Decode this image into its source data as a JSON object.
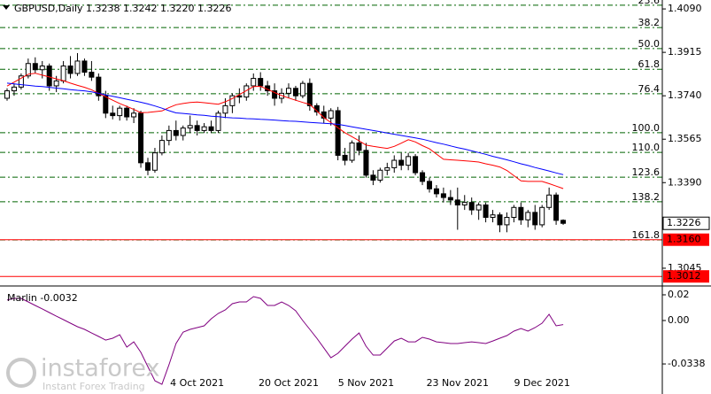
{
  "chart_data": [
    {
      "type": "candlestick",
      "title": "GBPUSD,Daily  1.3238 1.3242 1.3220 1.3226",
      "ylim": [
        1.2977,
        1.4126
      ],
      "yticks": [
        {
          "value": 1.409,
          "label": "1.4090"
        },
        1.3915,
        {
          "value": 1.374,
          "label": "1.3740"
        },
        1.3565,
        {
          "value": 1.339,
          "label": "1.3390"
        },
        1.3045
      ],
      "current_price": 1.3226,
      "levels": [
        {
          "value": 1.316,
          "label": "1.3160",
          "color": "#ff0000"
        },
        {
          "value": 1.3012,
          "label": "1.3012",
          "color": "#ff0000"
        }
      ],
      "fib_color": "#006400",
      "fib_levels": [
        {
          "value": 1.4105,
          "label": "23.6"
        },
        {
          "value": 1.4015,
          "label": "38.2"
        },
        {
          "value": 1.393,
          "label": "50.0"
        },
        {
          "value": 1.3847,
          "label": "61.8"
        },
        {
          "value": 1.3748,
          "label": "76.4"
        },
        {
          "value": 1.3591,
          "label": "100.0"
        },
        {
          "value": 1.3512,
          "label": "110.0"
        },
        {
          "value": 1.3412,
          "label": "123.6"
        },
        {
          "value": 1.3313,
          "label": "138.2"
        },
        {
          "value": 1.3159,
          "label": "161.8"
        }
      ],
      "categories": [
        null,
        null,
        null,
        null,
        null,
        null,
        null,
        null,
        null,
        null,
        null,
        null,
        null,
        null,
        null,
        null,
        null,
        null,
        null,
        null,
        null,
        null,
        null,
        null,
        null,
        null,
        null,
        "4 Oct 2021",
        null,
        null,
        null,
        null,
        null,
        null,
        null,
        null,
        null,
        null,
        null,
        null,
        "20 Oct 2021",
        null,
        null,
        null,
        null,
        null,
        null,
        null,
        null,
        null,
        null,
        "5 Nov 2021",
        null,
        null,
        null,
        null,
        null,
        null,
        null,
        null,
        null,
        null,
        null,
        null,
        "23 Nov 2021",
        null,
        null,
        null,
        null,
        null,
        null,
        null,
        null,
        null,
        null,
        null,
        "9 Dec 2021",
        null,
        null,
        null
      ],
      "ohlc": [
        [
          1.373,
          1.377,
          1.372,
          1.376
        ],
        [
          1.376,
          1.379,
          1.374,
          1.3775
        ],
        [
          1.3775,
          1.383,
          1.3765,
          1.382
        ],
        [
          1.382,
          1.389,
          1.381,
          1.387
        ],
        [
          1.387,
          1.3895,
          1.383,
          1.3845
        ],
        [
          1.3845,
          1.388,
          1.381,
          1.386
        ],
        [
          1.386,
          1.387,
          1.376,
          1.378
        ],
        [
          1.378,
          1.382,
          1.3755,
          1.38
        ],
        [
          1.38,
          1.388,
          1.379,
          1.386
        ],
        [
          1.386,
          1.39,
          1.381,
          1.383
        ],
        [
          1.383,
          1.3912,
          1.382,
          1.388
        ],
        [
          1.388,
          1.389,
          1.382,
          1.3835
        ],
        [
          1.3835,
          1.388,
          1.38,
          1.3815
        ],
        [
          1.3815,
          1.383,
          1.372,
          1.374
        ],
        [
          1.374,
          1.376,
          1.365,
          1.367
        ],
        [
          1.367,
          1.37,
          1.3645,
          1.366
        ],
        [
          1.366,
          1.37,
          1.364,
          1.369
        ],
        [
          1.369,
          1.37,
          1.364,
          1.3655
        ],
        [
          1.3655,
          1.369,
          1.363,
          1.367
        ],
        [
          1.367,
          1.368,
          1.345,
          1.347
        ],
        [
          1.347,
          1.349,
          1.342,
          1.344
        ],
        [
          1.344,
          1.353,
          1.343,
          1.351
        ],
        [
          1.351,
          1.358,
          1.35,
          1.356
        ],
        [
          1.356,
          1.362,
          1.354,
          1.36
        ],
        [
          1.36,
          1.364,
          1.356,
          1.358
        ],
        [
          1.358,
          1.362,
          1.356,
          1.361
        ],
        [
          1.361,
          1.366,
          1.359,
          1.362
        ],
        [
          1.362,
          1.364,
          1.358,
          1.36
        ],
        [
          1.36,
          1.363,
          1.359,
          1.3615
        ],
        [
          1.3615,
          1.364,
          1.359,
          1.36
        ],
        [
          1.36,
          1.368,
          1.359,
          1.367
        ],
        [
          1.367,
          1.373,
          1.365,
          1.37
        ],
        [
          1.37,
          1.375,
          1.367,
          1.374
        ],
        [
          1.374,
          1.377,
          1.371,
          1.3735
        ],
        [
          1.3735,
          1.379,
          1.372,
          1.378
        ],
        [
          1.378,
          1.383,
          1.376,
          1.381
        ],
        [
          1.381,
          1.3835,
          1.376,
          1.378
        ],
        [
          1.378,
          1.38,
          1.374,
          1.376
        ],
        [
          1.376,
          1.379,
          1.37,
          1.373
        ],
        [
          1.373,
          1.377,
          1.371,
          1.375
        ],
        [
          1.375,
          1.379,
          1.373,
          1.377
        ],
        [
          1.377,
          1.378,
          1.372,
          1.374
        ],
        [
          1.374,
          1.38,
          1.373,
          1.379
        ],
        [
          1.379,
          1.381,
          1.368,
          1.37
        ],
        [
          1.37,
          1.371,
          1.366,
          1.3675
        ],
        [
          1.3675,
          1.37,
          1.363,
          1.365
        ],
        [
          1.365,
          1.369,
          1.362,
          1.368
        ],
        [
          1.368,
          1.3695,
          1.348,
          1.35
        ],
        [
          1.35,
          1.353,
          1.346,
          1.348
        ],
        [
          1.348,
          1.356,
          1.347,
          1.355
        ],
        [
          1.355,
          1.358,
          1.35,
          1.352
        ],
        [
          1.352,
          1.355,
          1.341,
          1.342
        ],
        [
          1.342,
          1.344,
          1.338,
          1.34
        ],
        [
          1.34,
          1.345,
          1.339,
          1.344
        ],
        [
          1.344,
          1.347,
          1.342,
          1.345
        ],
        [
          1.345,
          1.35,
          1.343,
          1.348
        ],
        [
          1.348,
          1.351,
          1.344,
          1.346
        ],
        [
          1.346,
          1.351,
          1.344,
          1.3495
        ],
        [
          1.3495,
          1.3505,
          1.342,
          1.343
        ],
        [
          1.343,
          1.344,
          1.338,
          1.3395
        ],
        [
          1.3395,
          1.341,
          1.335,
          1.3365
        ],
        [
          1.3365,
          1.338,
          1.333,
          1.3345
        ],
        [
          1.3345,
          1.337,
          1.331,
          1.333
        ],
        [
          1.333,
          1.336,
          1.33,
          1.332
        ],
        [
          1.332,
          1.337,
          1.32,
          1.33
        ],
        [
          1.33,
          1.334,
          1.328,
          1.331
        ],
        [
          1.331,
          1.333,
          1.326,
          1.328
        ],
        [
          1.328,
          1.331,
          1.324,
          1.33
        ],
        [
          1.33,
          1.331,
          1.323,
          1.325
        ],
        [
          1.325,
          1.328,
          1.323,
          1.326
        ],
        [
          1.326,
          1.327,
          1.319,
          1.322
        ],
        [
          1.322,
          1.327,
          1.319,
          1.325
        ],
        [
          1.325,
          1.33,
          1.323,
          1.329
        ],
        [
          1.329,
          1.331,
          1.322,
          1.324
        ],
        [
          1.324,
          1.328,
          1.321,
          1.327
        ],
        [
          1.327,
          1.33,
          1.32,
          1.322
        ],
        [
          1.322,
          1.33,
          1.321,
          1.329
        ],
        [
          1.329,
          1.337,
          1.328,
          1.334
        ],
        [
          1.334,
          1.335,
          1.322,
          1.3238
        ],
        [
          1.3238,
          1.3242,
          1.322,
          1.3226
        ]
      ],
      "overlays": [
        {
          "color": "#ff0000",
          "values": [
            1.3779,
            1.3795,
            1.3811,
            1.3827,
            1.3831,
            1.3823,
            1.3816,
            1.3808,
            1.3801,
            1.3791,
            1.3782,
            1.3774,
            1.3764,
            1.375,
            1.3736,
            1.3722,
            1.3709,
            1.3697,
            1.3685,
            1.3672,
            1.3673,
            1.3676,
            1.3679,
            1.3692,
            1.3704,
            1.3709,
            1.3713,
            1.3715,
            1.3712,
            1.3709,
            1.3706,
            1.3716,
            1.3729,
            1.3745,
            1.3761,
            1.3777,
            1.3778,
            1.3766,
            1.3753,
            1.3741,
            1.3731,
            1.3722,
            1.3713,
            1.3705,
            1.3679,
            1.3652,
            1.3632,
            1.3611,
            1.3591,
            1.3575,
            1.3559,
            1.3541,
            1.3536,
            1.3532,
            1.3528,
            1.3536,
            1.3549,
            1.3563,
            1.3554,
            1.3539,
            1.3526,
            1.3505,
            1.3484,
            1.3482,
            1.348,
            1.3478,
            1.3476,
            1.3473,
            1.3466,
            1.346,
            1.3453,
            1.3439,
            1.3418,
            1.3397,
            1.3395,
            1.3395,
            1.3395,
            1.3386,
            1.3376,
            1.3366
          ]
        },
        {
          "color": "#0000ff",
          "values": [
            1.3791,
            1.3788,
            1.3785,
            1.3782,
            1.3779,
            1.3777,
            1.3774,
            1.3771,
            1.3768,
            1.3765,
            1.3762,
            1.376,
            1.3756,
            1.375,
            1.3744,
            1.3738,
            1.3732,
            1.3726,
            1.372,
            1.3714,
            1.3707,
            1.3699,
            1.369,
            1.368,
            1.3671,
            1.3669,
            1.3666,
            1.3663,
            1.3661,
            1.3658,
            1.3656,
            1.3653,
            1.3651,
            1.365,
            1.3648,
            1.3647,
            1.3645,
            1.3644,
            1.3642,
            1.364,
            1.3638,
            1.3637,
            1.3635,
            1.3633,
            1.3631,
            1.3629,
            1.3627,
            1.3625,
            1.362,
            1.3615,
            1.361,
            1.3605,
            1.36,
            1.3595,
            1.359,
            1.3585,
            1.358,
            1.3575,
            1.357,
            1.3565,
            1.3558,
            1.3551,
            1.3545,
            1.3538,
            1.3531,
            1.3525,
            1.3518,
            1.3511,
            1.3504,
            1.3496,
            1.3489,
            1.3482,
            1.3474,
            1.3466,
            1.3459,
            1.3451,
            1.3444,
            1.3437,
            1.3429,
            1.3422
          ]
        }
      ],
      "watermark": {
        "brand": "instaforex",
        "slogan": "Instant Forex Trading"
      }
    },
    {
      "type": "line",
      "title": "Marlin -0.0032",
      "ylim": [
        -0.0572,
        0.0255
      ],
      "yticks": [
        0.02,
        {
          "value": 0,
          "label": "0.00"
        },
        -0.0338
      ],
      "color": "#800080",
      "values": [
        0.0159,
        0.0172,
        0.0172,
        0.0145,
        0.0117,
        0.009,
        0.0062,
        0.0034,
        0.0007,
        -0.0021,
        -0.0048,
        -0.0069,
        -0.0097,
        -0.0124,
        -0.0152,
        -0.0138,
        -0.011,
        -0.0207,
        -0.0166,
        -0.0248,
        -0.0359,
        -0.0469,
        -0.0497,
        -0.0345,
        -0.0179,
        -0.009,
        -0.0069,
        -0.0055,
        -0.0041,
        0.0014,
        0.0055,
        0.0083,
        0.0131,
        0.0145,
        0.0145,
        0.0186,
        0.0172,
        0.0117,
        0.0117,
        0.0145,
        0.0117,
        0.0076,
        0.0,
        -0.0069,
        -0.0138,
        -0.0214,
        -0.029,
        -0.0255,
        -0.02,
        -0.0145,
        -0.0097,
        -0.02,
        -0.0269,
        -0.0269,
        -0.0214,
        -0.0159,
        -0.0138,
        -0.0166,
        -0.0166,
        -0.0131,
        -0.0145,
        -0.0166,
        -0.0172,
        -0.0179,
        -0.0179,
        -0.0172,
        -0.0166,
        -0.0172,
        -0.0179,
        -0.0159,
        -0.0138,
        -0.0117,
        -0.0083,
        -0.0062,
        -0.0083,
        -0.0055,
        -0.0021,
        0.0048,
        -0.0041,
        -0.0032
      ]
    }
  ]
}
